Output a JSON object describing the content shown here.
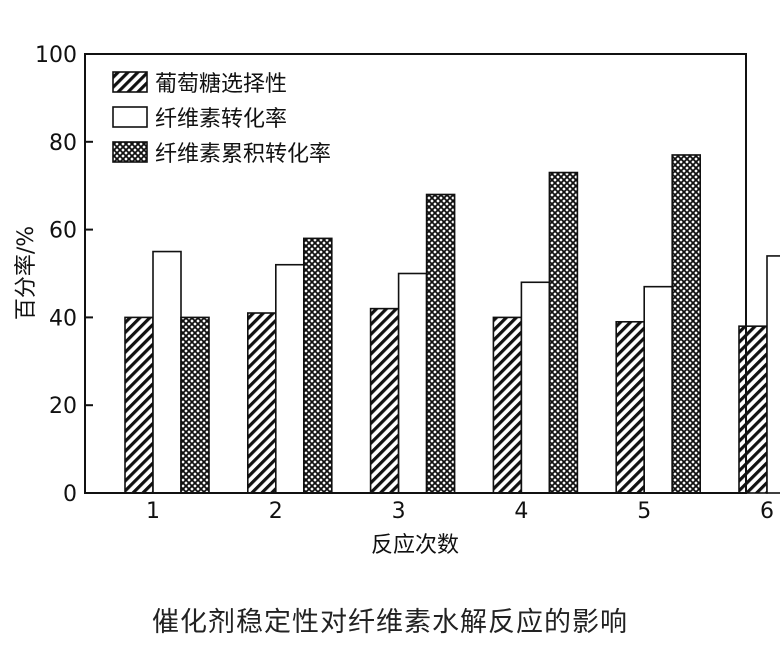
{
  "chart_data": {
    "type": "bar",
    "xlabel": "反应次数",
    "ylabel": "百分率/%",
    "ylim": [
      0,
      100
    ],
    "yticks": [
      0,
      20,
      40,
      60,
      80,
      100
    ],
    "categories": [
      "1",
      "2",
      "3",
      "4",
      "5",
      "6"
    ],
    "legend_position": "top-left",
    "grid": false,
    "series": [
      {
        "name": "葡萄糖选择性",
        "pattern": "diagonal-hatch",
        "values": [
          40,
          41,
          42,
          40,
          39,
          38
        ]
      },
      {
        "name": "纤维素转化率",
        "pattern": "none",
        "values": [
          55,
          52,
          50,
          48,
          47,
          54
        ]
      },
      {
        "name": "纤维素累积转化率",
        "pattern": "crosshatch",
        "values": [
          40,
          58,
          68,
          73,
          77,
          null
        ]
      }
    ]
  },
  "caption": "催化剂稳定性对纤维素水解反应的影响"
}
